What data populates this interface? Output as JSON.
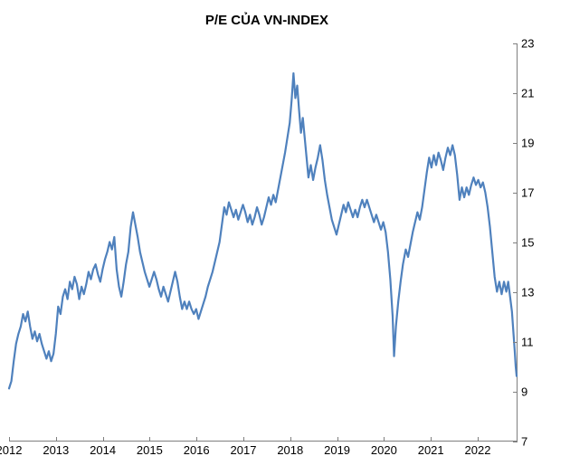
{
  "chart": {
    "type": "line",
    "title": "P/E CỦA VN-INDEX",
    "title_fontsize": 15,
    "title_fontweight": "700",
    "title_color": "#000000",
    "background_color": "#ffffff",
    "axis_color": "#7f7f7f",
    "y_axis_side": "right",
    "label_fontsize": 13,
    "grid": false,
    "ylim": [
      7,
      23
    ],
    "ytick_step": 2,
    "yticks": [
      7,
      9,
      11,
      13,
      15,
      17,
      19,
      21,
      23
    ],
    "xlim": [
      2012.0,
      2022.85
    ],
    "xticks": [
      2012,
      2013,
      2014,
      2015,
      2016,
      2017,
      2018,
      2019,
      2020,
      2021,
      2022
    ],
    "line_color": "#4f81bd",
    "line_width": 2.2,
    "series": [
      {
        "x": 2012.0,
        "y": 9.1
      },
      {
        "x": 2012.05,
        "y": 9.4
      },
      {
        "x": 2012.1,
        "y": 10.2
      },
      {
        "x": 2012.15,
        "y": 10.9
      },
      {
        "x": 2012.2,
        "y": 11.3
      },
      {
        "x": 2012.25,
        "y": 11.6
      },
      {
        "x": 2012.3,
        "y": 12.1
      },
      {
        "x": 2012.35,
        "y": 11.8
      },
      {
        "x": 2012.4,
        "y": 12.2
      },
      {
        "x": 2012.45,
        "y": 11.6
      },
      {
        "x": 2012.5,
        "y": 11.1
      },
      {
        "x": 2012.55,
        "y": 11.4
      },
      {
        "x": 2012.6,
        "y": 11.0
      },
      {
        "x": 2012.65,
        "y": 11.3
      },
      {
        "x": 2012.7,
        "y": 10.9
      },
      {
        "x": 2012.75,
        "y": 10.6
      },
      {
        "x": 2012.8,
        "y": 10.3
      },
      {
        "x": 2012.85,
        "y": 10.6
      },
      {
        "x": 2012.9,
        "y": 10.2
      },
      {
        "x": 2012.95,
        "y": 10.5
      },
      {
        "x": 2013.0,
        "y": 11.3
      },
      {
        "x": 2013.05,
        "y": 12.4
      },
      {
        "x": 2013.1,
        "y": 12.1
      },
      {
        "x": 2013.15,
        "y": 12.8
      },
      {
        "x": 2013.2,
        "y": 13.1
      },
      {
        "x": 2013.25,
        "y": 12.7
      },
      {
        "x": 2013.3,
        "y": 13.4
      },
      {
        "x": 2013.35,
        "y": 13.1
      },
      {
        "x": 2013.4,
        "y": 13.6
      },
      {
        "x": 2013.45,
        "y": 13.3
      },
      {
        "x": 2013.5,
        "y": 12.7
      },
      {
        "x": 2013.55,
        "y": 13.2
      },
      {
        "x": 2013.6,
        "y": 12.9
      },
      {
        "x": 2013.65,
        "y": 13.3
      },
      {
        "x": 2013.7,
        "y": 13.8
      },
      {
        "x": 2013.75,
        "y": 13.5
      },
      {
        "x": 2013.8,
        "y": 13.9
      },
      {
        "x": 2013.85,
        "y": 14.1
      },
      {
        "x": 2013.9,
        "y": 13.7
      },
      {
        "x": 2013.95,
        "y": 13.4
      },
      {
        "x": 2014.0,
        "y": 13.9
      },
      {
        "x": 2014.05,
        "y": 14.3
      },
      {
        "x": 2014.1,
        "y": 14.6
      },
      {
        "x": 2014.15,
        "y": 15.0
      },
      {
        "x": 2014.2,
        "y": 14.7
      },
      {
        "x": 2014.25,
        "y": 15.2
      },
      {
        "x": 2014.3,
        "y": 13.9
      },
      {
        "x": 2014.35,
        "y": 13.2
      },
      {
        "x": 2014.4,
        "y": 12.8
      },
      {
        "x": 2014.45,
        "y": 13.4
      },
      {
        "x": 2014.5,
        "y": 14.1
      },
      {
        "x": 2014.55,
        "y": 14.6
      },
      {
        "x": 2014.6,
        "y": 15.6
      },
      {
        "x": 2014.65,
        "y": 16.2
      },
      {
        "x": 2014.7,
        "y": 15.7
      },
      {
        "x": 2014.75,
        "y": 15.2
      },
      {
        "x": 2014.8,
        "y": 14.6
      },
      {
        "x": 2014.85,
        "y": 14.2
      },
      {
        "x": 2014.9,
        "y": 13.8
      },
      {
        "x": 2014.95,
        "y": 13.5
      },
      {
        "x": 2015.0,
        "y": 13.2
      },
      {
        "x": 2015.05,
        "y": 13.5
      },
      {
        "x": 2015.1,
        "y": 13.8
      },
      {
        "x": 2015.15,
        "y": 13.5
      },
      {
        "x": 2015.2,
        "y": 13.1
      },
      {
        "x": 2015.25,
        "y": 12.8
      },
      {
        "x": 2015.3,
        "y": 13.2
      },
      {
        "x": 2015.35,
        "y": 12.9
      },
      {
        "x": 2015.4,
        "y": 12.6
      },
      {
        "x": 2015.45,
        "y": 13.0
      },
      {
        "x": 2015.5,
        "y": 13.4
      },
      {
        "x": 2015.55,
        "y": 13.8
      },
      {
        "x": 2015.6,
        "y": 13.4
      },
      {
        "x": 2015.65,
        "y": 12.8
      },
      {
        "x": 2015.7,
        "y": 12.3
      },
      {
        "x": 2015.75,
        "y": 12.6
      },
      {
        "x": 2015.8,
        "y": 12.3
      },
      {
        "x": 2015.85,
        "y": 12.6
      },
      {
        "x": 2015.9,
        "y": 12.3
      },
      {
        "x": 2015.95,
        "y": 12.1
      },
      {
        "x": 2016.0,
        "y": 12.3
      },
      {
        "x": 2016.05,
        "y": 11.9
      },
      {
        "x": 2016.1,
        "y": 12.2
      },
      {
        "x": 2016.15,
        "y": 12.5
      },
      {
        "x": 2016.2,
        "y": 12.8
      },
      {
        "x": 2016.25,
        "y": 13.2
      },
      {
        "x": 2016.3,
        "y": 13.5
      },
      {
        "x": 2016.35,
        "y": 13.8
      },
      {
        "x": 2016.4,
        "y": 14.2
      },
      {
        "x": 2016.45,
        "y": 14.6
      },
      {
        "x": 2016.5,
        "y": 15.0
      },
      {
        "x": 2016.55,
        "y": 15.7
      },
      {
        "x": 2016.6,
        "y": 16.4
      },
      {
        "x": 2016.65,
        "y": 16.1
      },
      {
        "x": 2016.7,
        "y": 16.6
      },
      {
        "x": 2016.75,
        "y": 16.3
      },
      {
        "x": 2016.8,
        "y": 16.0
      },
      {
        "x": 2016.85,
        "y": 16.3
      },
      {
        "x": 2016.9,
        "y": 15.9
      },
      {
        "x": 2016.95,
        "y": 16.2
      },
      {
        "x": 2017.0,
        "y": 16.5
      },
      {
        "x": 2017.05,
        "y": 16.2
      },
      {
        "x": 2017.1,
        "y": 15.8
      },
      {
        "x": 2017.15,
        "y": 16.1
      },
      {
        "x": 2017.2,
        "y": 15.7
      },
      {
        "x": 2017.25,
        "y": 16.0
      },
      {
        "x": 2017.3,
        "y": 16.4
      },
      {
        "x": 2017.35,
        "y": 16.1
      },
      {
        "x": 2017.4,
        "y": 15.7
      },
      {
        "x": 2017.45,
        "y": 16.0
      },
      {
        "x": 2017.5,
        "y": 16.4
      },
      {
        "x": 2017.55,
        "y": 16.8
      },
      {
        "x": 2017.6,
        "y": 16.5
      },
      {
        "x": 2017.65,
        "y": 16.9
      },
      {
        "x": 2017.7,
        "y": 16.6
      },
      {
        "x": 2017.75,
        "y": 17.1
      },
      {
        "x": 2017.8,
        "y": 17.6
      },
      {
        "x": 2017.85,
        "y": 18.1
      },
      {
        "x": 2017.9,
        "y": 18.6
      },
      {
        "x": 2017.95,
        "y": 19.2
      },
      {
        "x": 2018.0,
        "y": 19.8
      },
      {
        "x": 2018.04,
        "y": 20.7
      },
      {
        "x": 2018.08,
        "y": 21.8
      },
      {
        "x": 2018.12,
        "y": 20.8
      },
      {
        "x": 2018.16,
        "y": 21.3
      },
      {
        "x": 2018.2,
        "y": 20.3
      },
      {
        "x": 2018.24,
        "y": 19.4
      },
      {
        "x": 2018.28,
        "y": 20.0
      },
      {
        "x": 2018.32,
        "y": 19.2
      },
      {
        "x": 2018.36,
        "y": 18.4
      },
      {
        "x": 2018.4,
        "y": 17.6
      },
      {
        "x": 2018.45,
        "y": 18.1
      },
      {
        "x": 2018.5,
        "y": 17.5
      },
      {
        "x": 2018.55,
        "y": 18.0
      },
      {
        "x": 2018.6,
        "y": 18.4
      },
      {
        "x": 2018.65,
        "y": 18.9
      },
      {
        "x": 2018.7,
        "y": 18.3
      },
      {
        "x": 2018.75,
        "y": 17.5
      },
      {
        "x": 2018.8,
        "y": 16.9
      },
      {
        "x": 2018.85,
        "y": 16.4
      },
      {
        "x": 2018.9,
        "y": 15.9
      },
      {
        "x": 2018.95,
        "y": 15.6
      },
      {
        "x": 2019.0,
        "y": 15.3
      },
      {
        "x": 2019.05,
        "y": 15.7
      },
      {
        "x": 2019.1,
        "y": 16.1
      },
      {
        "x": 2019.15,
        "y": 16.5
      },
      {
        "x": 2019.2,
        "y": 16.2
      },
      {
        "x": 2019.25,
        "y": 16.6
      },
      {
        "x": 2019.3,
        "y": 16.3
      },
      {
        "x": 2019.35,
        "y": 16.0
      },
      {
        "x": 2019.4,
        "y": 16.3
      },
      {
        "x": 2019.45,
        "y": 16.0
      },
      {
        "x": 2019.5,
        "y": 16.4
      },
      {
        "x": 2019.55,
        "y": 16.7
      },
      {
        "x": 2019.6,
        "y": 16.4
      },
      {
        "x": 2019.65,
        "y": 16.7
      },
      {
        "x": 2019.7,
        "y": 16.4
      },
      {
        "x": 2019.75,
        "y": 16.1
      },
      {
        "x": 2019.8,
        "y": 15.8
      },
      {
        "x": 2019.85,
        "y": 16.1
      },
      {
        "x": 2019.9,
        "y": 15.8
      },
      {
        "x": 2019.95,
        "y": 15.5
      },
      {
        "x": 2020.0,
        "y": 15.8
      },
      {
        "x": 2020.05,
        "y": 15.4
      },
      {
        "x": 2020.1,
        "y": 14.6
      },
      {
        "x": 2020.15,
        "y": 13.5
      },
      {
        "x": 2020.2,
        "y": 12.0
      },
      {
        "x": 2020.23,
        "y": 10.4
      },
      {
        "x": 2020.27,
        "y": 11.6
      },
      {
        "x": 2020.32,
        "y": 12.6
      },
      {
        "x": 2020.37,
        "y": 13.4
      },
      {
        "x": 2020.42,
        "y": 14.1
      },
      {
        "x": 2020.48,
        "y": 14.7
      },
      {
        "x": 2020.53,
        "y": 14.4
      },
      {
        "x": 2020.58,
        "y": 14.9
      },
      {
        "x": 2020.63,
        "y": 15.4
      },
      {
        "x": 2020.68,
        "y": 15.8
      },
      {
        "x": 2020.73,
        "y": 16.2
      },
      {
        "x": 2020.78,
        "y": 15.9
      },
      {
        "x": 2020.83,
        "y": 16.4
      },
      {
        "x": 2020.88,
        "y": 17.1
      },
      {
        "x": 2020.93,
        "y": 17.8
      },
      {
        "x": 2020.98,
        "y": 18.4
      },
      {
        "x": 2021.03,
        "y": 18.0
      },
      {
        "x": 2021.08,
        "y": 18.5
      },
      {
        "x": 2021.13,
        "y": 18.1
      },
      {
        "x": 2021.18,
        "y": 18.6
      },
      {
        "x": 2021.23,
        "y": 18.3
      },
      {
        "x": 2021.28,
        "y": 17.9
      },
      {
        "x": 2021.33,
        "y": 18.4
      },
      {
        "x": 2021.38,
        "y": 18.8
      },
      {
        "x": 2021.43,
        "y": 18.5
      },
      {
        "x": 2021.48,
        "y": 18.9
      },
      {
        "x": 2021.53,
        "y": 18.5
      },
      {
        "x": 2021.58,
        "y": 17.7
      },
      {
        "x": 2021.63,
        "y": 16.7
      },
      {
        "x": 2021.68,
        "y": 17.2
      },
      {
        "x": 2021.73,
        "y": 16.8
      },
      {
        "x": 2021.78,
        "y": 17.2
      },
      {
        "x": 2021.83,
        "y": 16.9
      },
      {
        "x": 2021.88,
        "y": 17.3
      },
      {
        "x": 2021.93,
        "y": 17.6
      },
      {
        "x": 2021.98,
        "y": 17.3
      },
      {
        "x": 2022.03,
        "y": 17.5
      },
      {
        "x": 2022.08,
        "y": 17.2
      },
      {
        "x": 2022.13,
        "y": 17.4
      },
      {
        "x": 2022.18,
        "y": 17.0
      },
      {
        "x": 2022.23,
        "y": 16.4
      },
      {
        "x": 2022.28,
        "y": 15.6
      },
      {
        "x": 2022.33,
        "y": 14.6
      },
      {
        "x": 2022.38,
        "y": 13.6
      },
      {
        "x": 2022.43,
        "y": 13.0
      },
      {
        "x": 2022.48,
        "y": 13.4
      },
      {
        "x": 2022.53,
        "y": 12.9
      },
      {
        "x": 2022.58,
        "y": 13.4
      },
      {
        "x": 2022.63,
        "y": 13.0
      },
      {
        "x": 2022.67,
        "y": 13.4
      },
      {
        "x": 2022.71,
        "y": 12.8
      },
      {
        "x": 2022.75,
        "y": 12.2
      },
      {
        "x": 2022.78,
        "y": 11.4
      },
      {
        "x": 2022.81,
        "y": 10.6
      },
      {
        "x": 2022.83,
        "y": 10.0
      },
      {
        "x": 2022.85,
        "y": 9.6
      }
    ]
  }
}
